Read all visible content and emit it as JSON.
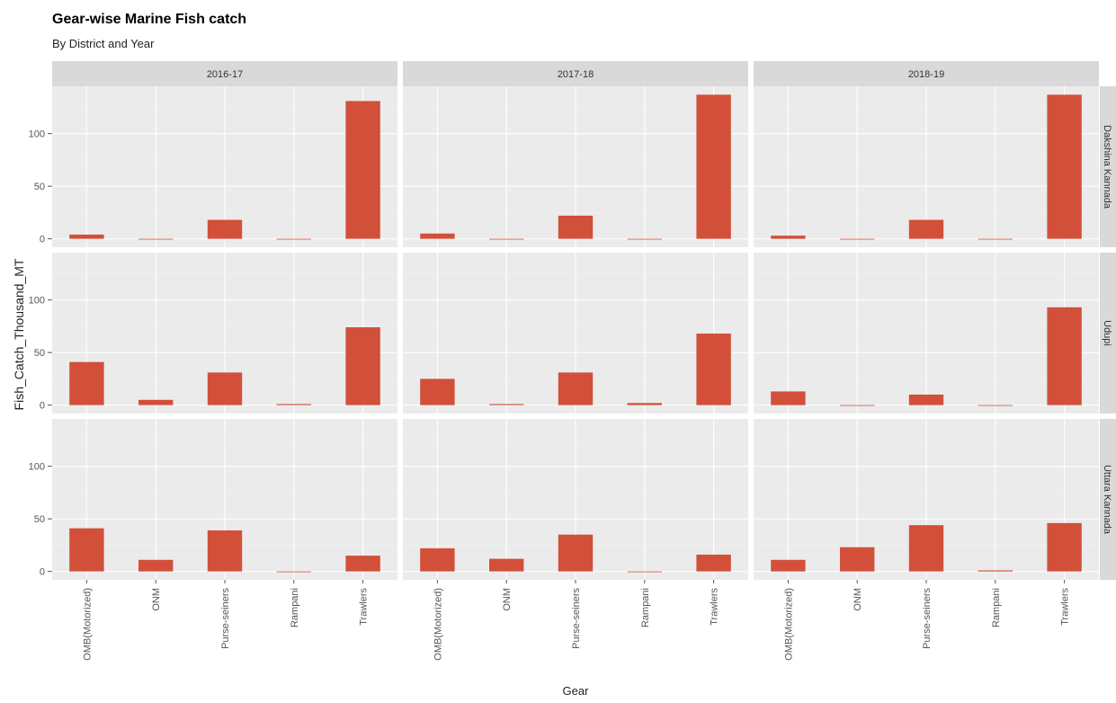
{
  "chart_data": {
    "type": "bar",
    "title": "Gear-wise Marine Fish catch",
    "subtitle": "By District and Year",
    "xlabel": "Gear",
    "ylabel": "Fish_Catch_Thousand_MT",
    "ylim": [
      -8,
      145
    ],
    "yticks": [
      0,
      50,
      100
    ],
    "ytick_labels": [
      "0",
      "50",
      "100"
    ],
    "grid": true,
    "bar_color": "#d2503a",
    "panel_bg": "#ebebeb",
    "strip_bg": "#d9d9d9",
    "categories": [
      "OMB(Motorized)",
      "ONM",
      "Purse-seiners",
      "Rampani",
      "Trawlers"
    ],
    "columns": [
      "2016-17",
      "2017-18",
      "2018-19"
    ],
    "rows": [
      "Dakshina Kannada",
      "Udupi",
      "Uttara Kannada"
    ],
    "values": [
      [
        [
          4,
          0,
          18,
          0,
          131
        ],
        [
          5,
          0,
          22,
          0,
          137
        ],
        [
          3,
          0,
          18,
          0,
          137
        ]
      ],
      [
        [
          41,
          5,
          31,
          1,
          74
        ],
        [
          25,
          1,
          31,
          2,
          68
        ],
        [
          13,
          0,
          10,
          0,
          93
        ]
      ],
      [
        [
          41,
          11,
          39,
          0,
          15
        ],
        [
          22,
          12,
          35,
          0,
          16
        ],
        [
          11,
          23,
          44,
          1,
          46
        ]
      ]
    ]
  }
}
